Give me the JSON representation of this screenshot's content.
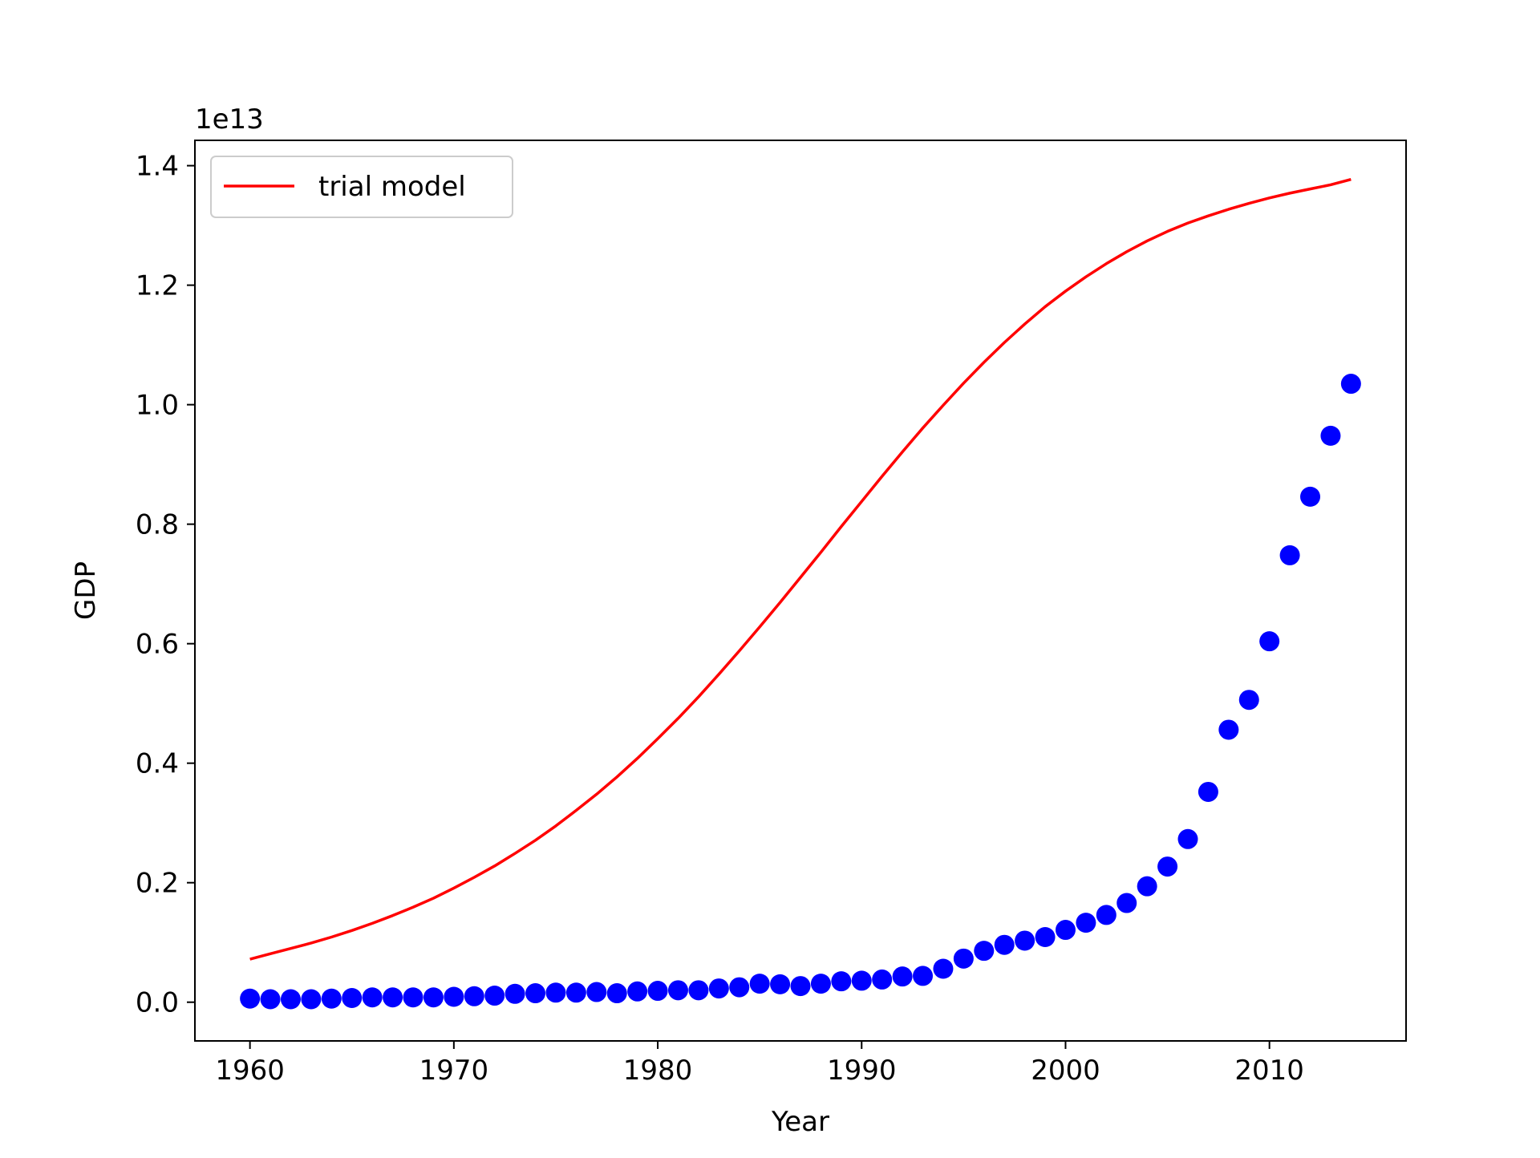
{
  "chart_data": {
    "type": "scatter",
    "xlabel": "Year",
    "ylabel": "GDP",
    "y_offset_label": "1e13",
    "y_scale_multiplier": 10000000000000.0,
    "xlim": [
      1957.3,
      2016.7
    ],
    "ylim": [
      -0.0648,
      1.4424
    ],
    "xticks": [
      1960,
      1970,
      1980,
      1990,
      2000,
      2010
    ],
    "xtick_labels": [
      "1960",
      "1970",
      "1980",
      "1990",
      "2000",
      "2010"
    ],
    "yticks": [
      0.0,
      0.2,
      0.4,
      0.6,
      0.8,
      1.0,
      1.2,
      1.4
    ],
    "ytick_labels": [
      "0.0",
      "0.2",
      "0.4",
      "0.6",
      "0.8",
      "1.0",
      "1.2",
      "1.4"
    ],
    "grid": false,
    "legend": {
      "position": "top-left",
      "entries": [
        {
          "label": "trial model",
          "color": "#ff0000",
          "kind": "line"
        }
      ]
    },
    "series": [
      {
        "kind": "scatter",
        "color": "#0000ff",
        "x": [
          1960,
          1961,
          1962,
          1963,
          1964,
          1965,
          1966,
          1967,
          1968,
          1969,
          1970,
          1971,
          1972,
          1973,
          1974,
          1975,
          1976,
          1977,
          1978,
          1979,
          1980,
          1981,
          1982,
          1983,
          1984,
          1985,
          1986,
          1987,
          1988,
          1989,
          1990,
          1991,
          1992,
          1993,
          1994,
          1995,
          1996,
          1997,
          1998,
          1999,
          2000,
          2001,
          2002,
          2003,
          2004,
          2005,
          2006,
          2007,
          2008,
          2009,
          2010,
          2011,
          2012,
          2013,
          2014
        ],
        "y": [
          0.006,
          0.005,
          0.005,
          0.005,
          0.006,
          0.007,
          0.008,
          0.008,
          0.008,
          0.008,
          0.009,
          0.01,
          0.011,
          0.014,
          0.015,
          0.016,
          0.016,
          0.017,
          0.015,
          0.018,
          0.019,
          0.02,
          0.02,
          0.023,
          0.025,
          0.031,
          0.03,
          0.027,
          0.031,
          0.035,
          0.036,
          0.038,
          0.043,
          0.044,
          0.056,
          0.073,
          0.086,
          0.096,
          0.103,
          0.109,
          0.121,
          0.133,
          0.146,
          0.166,
          0.194,
          0.227,
          0.273,
          0.352,
          0.456,
          0.506,
          0.604,
          0.748,
          0.846,
          0.948,
          1.035
        ]
      },
      {
        "name": "trial model",
        "kind": "line",
        "color": "#ff0000",
        "x": [
          1960,
          1961,
          1962,
          1963,
          1964,
          1965,
          1966,
          1967,
          1968,
          1969,
          1970,
          1971,
          1972,
          1973,
          1974,
          1975,
          1976,
          1977,
          1978,
          1979,
          1980,
          1981,
          1982,
          1983,
          1984,
          1985,
          1986,
          1987,
          1988,
          1989,
          1990,
          1991,
          1992,
          1993,
          1994,
          1995,
          1996,
          1997,
          1998,
          1999,
          2000,
          2001,
          2002,
          2003,
          2004,
          2005,
          2006,
          2007,
          2008,
          2009,
          2010,
          2011,
          2012,
          2013,
          2014
        ],
        "y": [
          0.072,
          0.081,
          0.09,
          0.099,
          0.109,
          0.12,
          0.132,
          0.145,
          0.159,
          0.174,
          0.191,
          0.209,
          0.228,
          0.249,
          0.271,
          0.295,
          0.321,
          0.348,
          0.377,
          0.408,
          0.441,
          0.475,
          0.511,
          0.549,
          0.588,
          0.628,
          0.669,
          0.711,
          0.753,
          0.796,
          0.838,
          0.88,
          0.921,
          0.961,
          0.999,
          1.036,
          1.071,
          1.104,
          1.135,
          1.164,
          1.19,
          1.214,
          1.236,
          1.256,
          1.274,
          1.29,
          1.304,
          1.316,
          1.327,
          1.337,
          1.346,
          1.354,
          1.361,
          1.368,
          1.377
        ]
      }
    ]
  }
}
